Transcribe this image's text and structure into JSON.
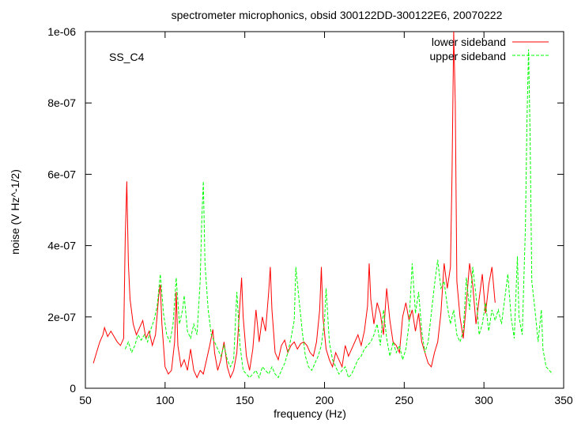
{
  "chart_data": {
    "type": "line",
    "title": "spectrometer microphonics, obsid 300122DD-300122E6, 20070222",
    "xlabel": "frequency (Hz)",
    "ylabel": "noise (V Hz^-1/2)",
    "annotation": "SS_C4",
    "xlim": [
      50,
      350
    ],
    "ylim": [
      0,
      1e-06
    ],
    "xticks": [
      50,
      100,
      150,
      200,
      250,
      300,
      350
    ],
    "xtick_labels": [
      "50",
      "100",
      "150",
      "200",
      "250",
      "300",
      "350"
    ],
    "yticks": [
      0,
      2e-07,
      4e-07,
      6e-07,
      8e-07,
      1e-06
    ],
    "ytick_labels": [
      "0",
      "2e-07",
      "4e-07",
      "6e-07",
      "8e-07",
      "1e-06"
    ],
    "legend_position": "top-right",
    "series": [
      {
        "name": "lower sideband",
        "color": "#ff0000",
        "dash": "solid",
        "points": [
          [
            55,
            7e-08
          ],
          [
            57,
            1e-07
          ],
          [
            59,
            1.3e-07
          ],
          [
            61,
            1.5e-07
          ],
          [
            62,
            1.7e-07
          ],
          [
            64,
            1.45e-07
          ],
          [
            66,
            1.6e-07
          ],
          [
            68,
            1.45e-07
          ],
          [
            70,
            1.3e-07
          ],
          [
            72,
            1.2e-07
          ],
          [
            74,
            1.4e-07
          ],
          [
            75,
            4.2e-07
          ],
          [
            76,
            5.8e-07
          ],
          [
            77,
            3.5e-07
          ],
          [
            78,
            2.5e-07
          ],
          [
            80,
            1.8e-07
          ],
          [
            82,
            1.5e-07
          ],
          [
            84,
            1.7e-07
          ],
          [
            86,
            1.9e-07
          ],
          [
            88,
            1.4e-07
          ],
          [
            90,
            1.6e-07
          ],
          [
            92,
            1.2e-07
          ],
          [
            94,
            1.5e-07
          ],
          [
            96,
            2.6e-07
          ],
          [
            97,
            2.9e-07
          ],
          [
            98,
            1.8e-07
          ],
          [
            100,
            6e-08
          ],
          [
            102,
            4e-08
          ],
          [
            104,
            5e-08
          ],
          [
            106,
            1.3e-07
          ],
          [
            107,
            2.7e-07
          ],
          [
            108,
            1.2e-07
          ],
          [
            110,
            6e-08
          ],
          [
            112,
            8e-08
          ],
          [
            114,
            5e-08
          ],
          [
            116,
            1.1e-07
          ],
          [
            118,
            5e-08
          ],
          [
            120,
            3e-08
          ],
          [
            122,
            5e-08
          ],
          [
            124,
            4e-08
          ],
          [
            126,
            8e-08
          ],
          [
            128,
            1.2e-07
          ],
          [
            130,
            1.65e-07
          ],
          [
            131,
            1e-07
          ],
          [
            133,
            5e-08
          ],
          [
            135,
            8e-08
          ],
          [
            137,
            1.3e-07
          ],
          [
            139,
            6e-08
          ],
          [
            141,
            3e-08
          ],
          [
            143,
            5e-08
          ],
          [
            145,
            1e-07
          ],
          [
            147,
            2.4e-07
          ],
          [
            148,
            3.1e-07
          ],
          [
            149,
            2e-07
          ],
          [
            151,
            9e-08
          ],
          [
            153,
            5e-08
          ],
          [
            155,
            1.1e-07
          ],
          [
            157,
            2.2e-07
          ],
          [
            159,
            1.3e-07
          ],
          [
            161,
            2e-07
          ],
          [
            163,
            1.6e-07
          ],
          [
            165,
            2.7e-07
          ],
          [
            166,
            3.4e-07
          ],
          [
            167,
            2.2e-07
          ],
          [
            169,
            1e-07
          ],
          [
            171,
            8e-08
          ],
          [
            173,
            1.2e-07
          ],
          [
            175,
            1.35e-07
          ],
          [
            177,
            1e-07
          ],
          [
            179,
            1.2e-07
          ],
          [
            181,
            1.3e-07
          ],
          [
            183,
            1.1e-07
          ],
          [
            185,
            1.25e-07
          ],
          [
            187,
            1.3e-07
          ],
          [
            189,
            1.2e-07
          ],
          [
            191,
            1e-07
          ],
          [
            193,
            9e-08
          ],
          [
            195,
            1.3e-07
          ],
          [
            197,
            2.2e-07
          ],
          [
            198,
            3.4e-07
          ],
          [
            199,
            2e-07
          ],
          [
            201,
            1.1e-07
          ],
          [
            203,
            8e-08
          ],
          [
            205,
            6e-08
          ],
          [
            207,
            1e-07
          ],
          [
            209,
            8e-08
          ],
          [
            211,
            6e-08
          ],
          [
            213,
            1.2e-07
          ],
          [
            215,
            9e-08
          ],
          [
            217,
            1.1e-07
          ],
          [
            219,
            1.3e-07
          ],
          [
            221,
            1.5e-07
          ],
          [
            223,
            1.2e-07
          ],
          [
            225,
            1.6e-07
          ],
          [
            227,
            2.3e-07
          ],
          [
            228,
            3.5e-07
          ],
          [
            229,
            2.5e-07
          ],
          [
            231,
            1.8e-07
          ],
          [
            233,
            2.4e-07
          ],
          [
            235,
            2.1e-07
          ],
          [
            237,
            1.5e-07
          ],
          [
            239,
            2.8e-07
          ],
          [
            241,
            1.9e-07
          ],
          [
            243,
            1.3e-07
          ],
          [
            245,
            1.2e-07
          ],
          [
            247,
            1e-07
          ],
          [
            249,
            2e-07
          ],
          [
            251,
            2.4e-07
          ],
          [
            253,
            1.9e-07
          ],
          [
            255,
            2.2e-07
          ],
          [
            257,
            1.6e-07
          ],
          [
            259,
            2.1e-07
          ],
          [
            261,
            1.3e-07
          ],
          [
            263,
            1e-07
          ],
          [
            265,
            7e-08
          ],
          [
            267,
            6e-08
          ],
          [
            269,
            1e-07
          ],
          [
            271,
            1.3e-07
          ],
          [
            273,
            2.1e-07
          ],
          [
            275,
            3.5e-07
          ],
          [
            277,
            2.8e-07
          ],
          [
            279,
            3.4e-07
          ],
          [
            280,
            6e-07
          ],
          [
            281,
            1e-06
          ],
          [
            282,
            8e-07
          ],
          [
            283,
            3e-07
          ],
          [
            285,
            2e-07
          ],
          [
            287,
            1.4e-07
          ],
          [
            289,
            2.4e-07
          ],
          [
            291,
            3.5e-07
          ],
          [
            293,
            2.9e-07
          ],
          [
            295,
            1.8e-07
          ],
          [
            297,
            2.5e-07
          ],
          [
            299,
            3.2e-07
          ],
          [
            301,
            2.1e-07
          ],
          [
            303,
            2.9e-07
          ],
          [
            305,
            3.4e-07
          ],
          [
            307,
            2.4e-07
          ]
        ]
      },
      {
        "name": "upper sideband",
        "color": "#00ff00",
        "dash": "dashed",
        "points": [
          [
            75,
            1.1e-07
          ],
          [
            77,
            1.3e-07
          ],
          [
            79,
            1e-07
          ],
          [
            81,
            1.2e-07
          ],
          [
            83,
            1.5e-07
          ],
          [
            85,
            1.35e-07
          ],
          [
            87,
            1.5e-07
          ],
          [
            89,
            1.3e-07
          ],
          [
            91,
            1.65e-07
          ],
          [
            93,
            1.9e-07
          ],
          [
            95,
            2.3e-07
          ],
          [
            97,
            3.2e-07
          ],
          [
            99,
            2.1e-07
          ],
          [
            101,
            1.5e-07
          ],
          [
            103,
            1.3e-07
          ],
          [
            105,
            1.8e-07
          ],
          [
            107,
            3.1e-07
          ],
          [
            109,
            1.8e-07
          ],
          [
            111,
            2.2e-07
          ],
          [
            112,
            2.6e-07
          ],
          [
            114,
            1.6e-07
          ],
          [
            116,
            1.4e-07
          ],
          [
            118,
            1.8e-07
          ],
          [
            120,
            1.5e-07
          ],
          [
            122,
            3e-07
          ],
          [
            123,
            4.7e-07
          ],
          [
            124,
            5.8e-07
          ],
          [
            125,
            3.5e-07
          ],
          [
            127,
            2.2e-07
          ],
          [
            129,
            1.5e-07
          ],
          [
            131,
            1.3e-07
          ],
          [
            133,
            1.1e-07
          ],
          [
            135,
            9e-08
          ],
          [
            137,
            1.2e-07
          ],
          [
            139,
            8e-08
          ],
          [
            141,
            6e-08
          ],
          [
            143,
            8e-08
          ],
          [
            145,
            2.7e-07
          ],
          [
            147,
            1.2e-07
          ],
          [
            149,
            5e-08
          ],
          [
            151,
            4e-08
          ],
          [
            153,
            3e-08
          ],
          [
            155,
            4e-08
          ],
          [
            157,
            5e-08
          ],
          [
            159,
            3e-08
          ],
          [
            161,
            6e-08
          ],
          [
            163,
            5e-08
          ],
          [
            165,
            4e-08
          ],
          [
            167,
            6e-08
          ],
          [
            169,
            4e-08
          ],
          [
            171,
            3e-08
          ],
          [
            173,
            5e-08
          ],
          [
            175,
            7e-08
          ],
          [
            177,
            1e-07
          ],
          [
            179,
            1.4e-07
          ],
          [
            181,
            1.9e-07
          ],
          [
            182,
            3.4e-07
          ],
          [
            184,
            2.5e-07
          ],
          [
            186,
            1.6e-07
          ],
          [
            188,
            9e-08
          ],
          [
            190,
            6e-08
          ],
          [
            192,
            5e-08
          ],
          [
            194,
            7e-08
          ],
          [
            196,
            9e-08
          ],
          [
            198,
            1.2e-07
          ],
          [
            200,
            1.9e-07
          ],
          [
            201,
            2.8e-07
          ],
          [
            203,
            1.3e-07
          ],
          [
            205,
            8e-08
          ],
          [
            207,
            6e-08
          ],
          [
            209,
            4e-08
          ],
          [
            211,
            5e-08
          ],
          [
            213,
            6e-08
          ],
          [
            215,
            3e-08
          ],
          [
            217,
            4e-08
          ],
          [
            219,
            6e-08
          ],
          [
            221,
            8e-08
          ],
          [
            223,
            9e-08
          ],
          [
            225,
            1.1e-07
          ],
          [
            227,
            1.2e-07
          ],
          [
            229,
            1.3e-07
          ],
          [
            231,
            1.5e-07
          ],
          [
            233,
            1.8e-07
          ],
          [
            235,
            1.2e-07
          ],
          [
            237,
            2.2e-07
          ],
          [
            239,
            1.4e-07
          ],
          [
            241,
            9e-08
          ],
          [
            243,
            1.3e-07
          ],
          [
            245,
            1e-07
          ],
          [
            247,
            1.2e-07
          ],
          [
            249,
            8e-08
          ],
          [
            251,
            1.1e-07
          ],
          [
            253,
            1.8e-07
          ],
          [
            255,
            3.5e-07
          ],
          [
            257,
            2.1e-07
          ],
          [
            259,
            2.7e-07
          ],
          [
            261,
            1.6e-07
          ],
          [
            263,
            1e-07
          ],
          [
            265,
            1.3e-07
          ],
          [
            267,
            2.1e-07
          ],
          [
            269,
            2.9e-07
          ],
          [
            271,
            3.6e-07
          ],
          [
            273,
            2.8e-07
          ],
          [
            275,
            3e-07
          ],
          [
            277,
            2.3e-07
          ],
          [
            279,
            1.8e-07
          ],
          [
            281,
            2.2e-07
          ],
          [
            283,
            1.5e-07
          ],
          [
            285,
            1.3e-07
          ],
          [
            287,
            1.6e-07
          ],
          [
            289,
            3.1e-07
          ],
          [
            291,
            2.2e-07
          ],
          [
            293,
            3.4e-07
          ],
          [
            295,
            2.6e-07
          ],
          [
            297,
            1.5e-07
          ],
          [
            299,
            1.8e-07
          ],
          [
            301,
            2.4e-07
          ],
          [
            303,
            1.6e-07
          ],
          [
            305,
            2.2e-07
          ],
          [
            307,
            1.9e-07
          ],
          [
            309,
            2.2e-07
          ],
          [
            311,
            1.8e-07
          ],
          [
            313,
            2.5e-07
          ],
          [
            315,
            3.2e-07
          ],
          [
            317,
            2e-07
          ],
          [
            319,
            1.4e-07
          ],
          [
            321,
            3.7e-07
          ],
          [
            322,
            2e-07
          ],
          [
            324,
            1.5e-07
          ],
          [
            326,
            4.5e-07
          ],
          [
            327,
            7.5e-07
          ],
          [
            328,
            9.5e-07
          ],
          [
            329,
            7e-07
          ],
          [
            330,
            3e-07
          ],
          [
            332,
            2.2e-07
          ],
          [
            334,
            1.3e-07
          ],
          [
            336,
            2.2e-07
          ],
          [
            337,
            1.1e-07
          ],
          [
            339,
            6e-08
          ],
          [
            341,
            5e-08
          ],
          [
            343,
            4e-08
          ]
        ]
      }
    ]
  }
}
